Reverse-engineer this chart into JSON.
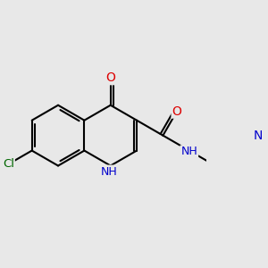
{
  "bg_color": "#e8e8e8",
  "bond_color": "#000000",
  "bond_width": 1.5,
  "atom_colors": {
    "O": "#dd0000",
    "N": "#0000cc",
    "Cl": "#006600",
    "C": "#000000"
  },
  "figsize": [
    3.0,
    3.0
  ],
  "dpi": 100,
  "xlim": [
    -1.65,
    1.75
  ],
  "ylim": [
    -1.1,
    1.15
  ]
}
